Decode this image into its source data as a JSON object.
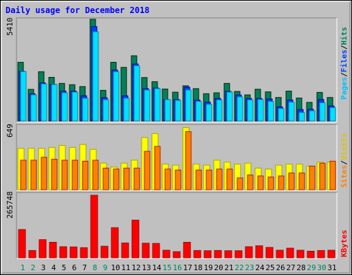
{
  "chart_data": [
    {
      "type": "bar",
      "title": "Daily usage for December 2018",
      "ylabel_parts": [
        "Pages",
        "/",
        "Files",
        "/",
        "Hits"
      ],
      "ymax_label": "5410",
      "ylim": [
        0,
        5410
      ],
      "categories": [
        "1",
        "2",
        "3",
        "4",
        "5",
        "6",
        "7",
        "8",
        "9",
        "10",
        "11",
        "12",
        "13",
        "14",
        "15",
        "16",
        "17",
        "18",
        "19",
        "20",
        "21",
        "22",
        "23",
        "24",
        "25",
        "26",
        "27",
        "28",
        "29",
        "30",
        "31"
      ],
      "weekend_days": [
        "1",
        "2",
        "8",
        "9",
        "15",
        "16",
        "22",
        "23",
        "29",
        "30"
      ],
      "series": [
        {
          "name": "Hits",
          "color": "#00805c",
          "values": [
            3120,
            1680,
            2620,
            2320,
            2000,
            1930,
            1830,
            5410,
            1630,
            3120,
            2850,
            3470,
            2310,
            2090,
            1700,
            1530,
            1870,
            1720,
            1450,
            1500,
            2000,
            1570,
            1390,
            1690,
            1550,
            1250,
            1590,
            1220,
            990,
            1520,
            1250
          ]
        },
        {
          "name": "Files",
          "color": "#0040ff",
          "values": [
            2640,
            1450,
            2030,
            1950,
            1590,
            1590,
            1340,
            5020,
            1240,
            2710,
            1340,
            3030,
            1720,
            1750,
            1140,
            1140,
            1800,
            1110,
            1000,
            1200,
            1570,
            1380,
            1200,
            1200,
            1170,
            750,
            1120,
            610,
            620,
            1140,
            800
          ]
        },
        {
          "name": "Pages",
          "color": "#00e0ff",
          "values": [
            2630,
            1390,
            1970,
            1940,
            1500,
            1540,
            1210,
            4750,
            1130,
            2620,
            1210,
            2940,
            1650,
            1720,
            1140,
            1100,
            1650,
            1040,
            890,
            1120,
            1540,
            1280,
            1120,
            1140,
            1040,
            660,
            1000,
            450,
            540,
            970,
            710
          ]
        }
      ]
    },
    {
      "type": "bar",
      "ylabel_parts": [
        "Sites",
        "/",
        "Visits"
      ],
      "ymax_label": "649",
      "ylim": [
        0,
        649
      ],
      "categories": [
        "1",
        "2",
        "3",
        "4",
        "5",
        "6",
        "7",
        "8",
        "9",
        "10",
        "11",
        "12",
        "13",
        "14",
        "15",
        "16",
        "17",
        "18",
        "19",
        "20",
        "21",
        "22",
        "23",
        "24",
        "25",
        "26",
        "27",
        "28",
        "29",
        "30",
        "31"
      ],
      "series": [
        {
          "name": "Visits",
          "color": "#ffff00",
          "values": [
            420,
            420,
            420,
            430,
            450,
            430,
            460,
            410,
            270,
            230,
            270,
            300,
            530,
            570,
            260,
            250,
            630,
            260,
            250,
            300,
            280,
            260,
            270,
            220,
            210,
            250,
            260,
            260,
            240,
            280,
            280
          ]
        },
        {
          "name": "Sites",
          "color": "#ff8000",
          "values": [
            300,
            300,
            330,
            310,
            300,
            300,
            290,
            300,
            220,
            210,
            220,
            220,
            390,
            440,
            210,
            200,
            590,
            200,
            200,
            210,
            210,
            120,
            150,
            140,
            130,
            140,
            170,
            170,
            240,
            270,
            290
          ]
        }
      ]
    },
    {
      "type": "bar",
      "ylabel_parts": [
        "KBytes"
      ],
      "ymax_label": "265748",
      "ylim": [
        0,
        265748
      ],
      "categories": [
        "1",
        "2",
        "3",
        "4",
        "5",
        "6",
        "7",
        "8",
        "9",
        "10",
        "11",
        "12",
        "13",
        "14",
        "15",
        "16",
        "17",
        "18",
        "19",
        "20",
        "21",
        "22",
        "23",
        "24",
        "25",
        "26",
        "27",
        "28",
        "29",
        "30",
        "31"
      ],
      "series": [
        {
          "name": "KBytes",
          "color": "#ff0000",
          "values": [
            120000,
            31000,
            77000,
            66000,
            47000,
            46000,
            43000,
            265748,
            49000,
            128000,
            63000,
            160000,
            62000,
            61000,
            32000,
            26000,
            66000,
            31000,
            30000,
            31000,
            30000,
            30000,
            47000,
            51000,
            44000,
            32000,
            41000,
            32000,
            28000,
            31000,
            32000
          ]
        }
      ]
    }
  ]
}
